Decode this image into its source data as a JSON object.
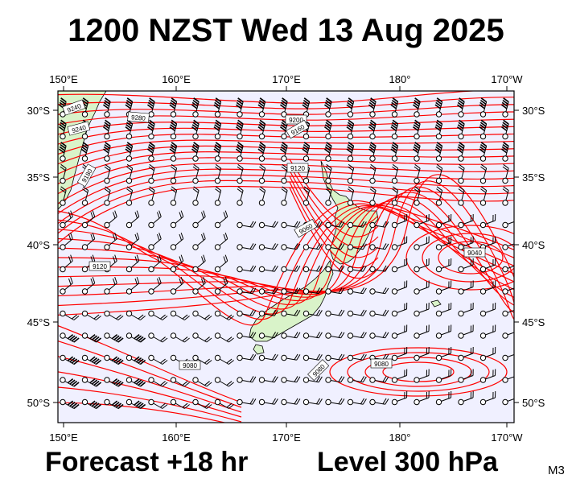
{
  "title": "1200 NZST Wed 13 Aug 2025",
  "footer": {
    "forecast": "Forecast +18 hr",
    "level": "Level 300 hPa",
    "model": "M3"
  },
  "map": {
    "longitude_labels": [
      "150°E",
      "160°E",
      "170°E",
      "180°",
      "170°W"
    ],
    "latitude_labels": [
      "30°S",
      "35°S",
      "40°S",
      "45°S",
      "50°S"
    ],
    "contour_labels": [
      "9240",
      "9280",
      "9240",
      "9200",
      "9160",
      "9120",
      "9180",
      "9120",
      "9060",
      "9040",
      "9080",
      "9080",
      "9080"
    ],
    "colors": {
      "ocean": "#f0f0ff",
      "land": "#d9f3c9",
      "contour": "#ff0000",
      "wind": "#000000"
    }
  }
}
